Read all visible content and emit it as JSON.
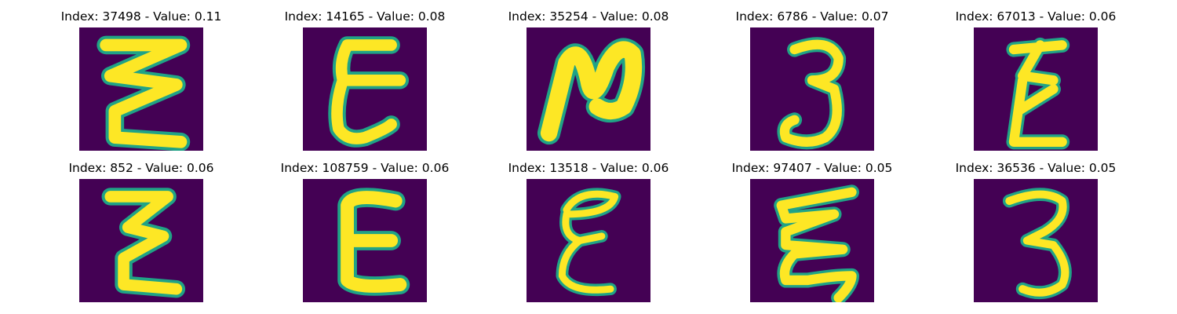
{
  "colors": {
    "background": "#440154",
    "stroke_bright": "#fde725",
    "stroke_edge": "#20a386"
  },
  "panels": [
    {
      "title": "Index: 37498 - Value: 0.11",
      "glyph": "zigzag-z-icon"
    },
    {
      "title": "Index: 14165 - Value: 0.08",
      "glyph": "epsilon-icon"
    },
    {
      "title": "Index: 35254 - Value: 0.08",
      "glyph": "n-curve-icon"
    },
    {
      "title": "Index: 6786 - Value: 0.07",
      "glyph": "digit-3-icon"
    },
    {
      "title": "Index: 67013 - Value: 0.06",
      "glyph": "zeta-icon"
    },
    {
      "title": "Index: 852 - Value: 0.06",
      "glyph": "zigzag-z-icon"
    },
    {
      "title": "Index: 108759 - Value: 0.06",
      "glyph": "e-curve-icon"
    },
    {
      "title": "Index: 13518 - Value: 0.06",
      "glyph": "epsilon-icon"
    },
    {
      "title": "Index: 97407 - Value: 0.05",
      "glyph": "zigzag-e-icon"
    },
    {
      "title": "Index: 36536 - Value: 0.05",
      "glyph": "digit-3-icon"
    }
  ]
}
